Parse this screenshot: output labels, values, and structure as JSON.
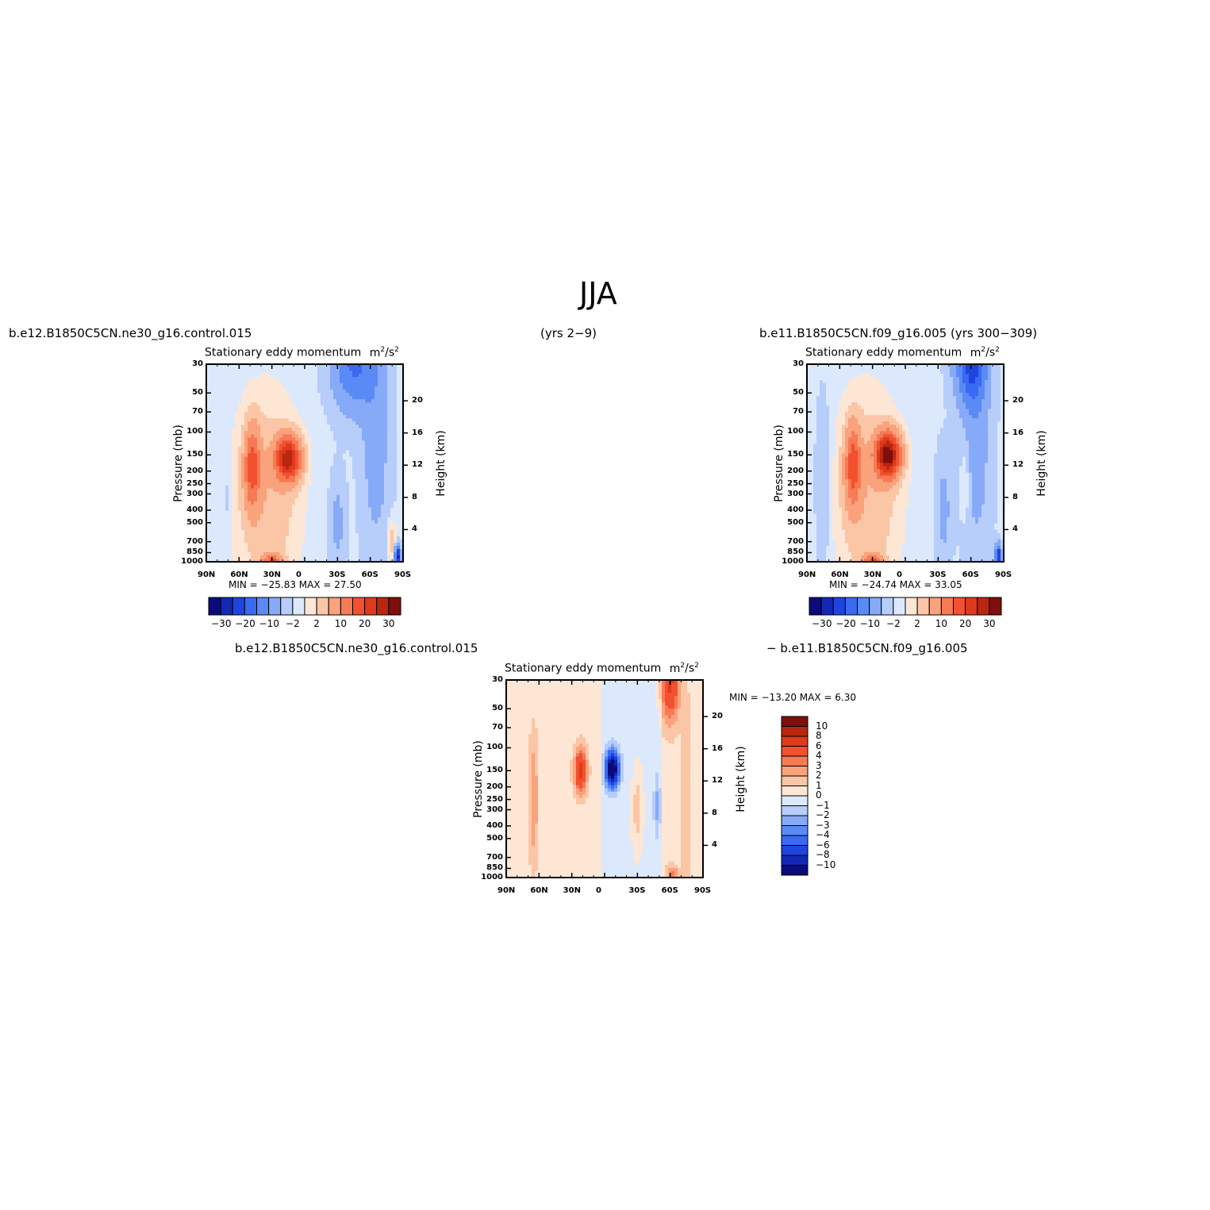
{
  "figure": {
    "title": "JJA",
    "case_left": "b.e12.B1850C5CN.ne30_g16.control.015",
    "years_left": "(yrs 2−9)",
    "case_right": "b.e11.B1850C5CN.f09_g16.005 (yrs 300−309)",
    "diff_case_a": "b.e12.B1850C5CN.ne30_g16.control.015",
    "diff_case_b": "−  b.e11.B1850C5CN.f09_g16.005"
  },
  "chart_data": [
    {
      "type": "heatmap",
      "panel": "left",
      "title": "Stationary eddy momentum",
      "units_base": "m",
      "units_exp1": "2",
      "units_mid": "/s",
      "units_exp2": "2",
      "xlabel": "",
      "ylabel": "Pressure (mb)",
      "y2label": "Height (km)",
      "x_ticks": [
        "90N",
        "60N",
        "30N",
        "0",
        "30S",
        "60S",
        "90S"
      ],
      "y_ticks": [
        "30",
        "50",
        "70",
        "100",
        "150",
        "200",
        "250",
        "300",
        "400",
        "500",
        "700",
        "850",
        "1000"
      ],
      "y2_ticks": [
        "20",
        "16",
        "12",
        "8",
        "4"
      ],
      "stats": "MIN =  −25.83   MAX =    27.50",
      "colorbar_labels": [
        "−30",
        "−20",
        "−10",
        "−2",
        "2",
        "10",
        "20",
        "30"
      ],
      "colors": [
        "#0b0b7a",
        "#1328b5",
        "#1e45e0",
        "#3a6af2",
        "#5a8af5",
        "#86aaf7",
        "#b7cdfa",
        "#dce9fd",
        "#fde6d4",
        "#fbc6a6",
        "#f9a27c",
        "#f67a55",
        "#f2502f",
        "#df3a1b",
        "#b92710",
        "#7e0f0a"
      ],
      "blobs": [
        {
          "lat": 15,
          "p": 160,
          "amp": 27.5,
          "slat": 8,
          "slogp": 0.12
        },
        {
          "lat": 48,
          "p": 185,
          "amp": 16,
          "slat": 5,
          "slogp": 0.22
        },
        {
          "lat": 35,
          "p": 300,
          "amp": 6,
          "slat": 22,
          "slogp": 0.55
        },
        {
          "lat": -45,
          "p": 30,
          "amp": -14,
          "slat": 14,
          "slogp": 0.25
        },
        {
          "lat": -65,
          "p": 120,
          "amp": -6,
          "slat": 9,
          "slogp": 0.6
        },
        {
          "lat": -30,
          "p": 500,
          "amp": -5,
          "slat": 5,
          "slogp": 0.25
        },
        {
          "lat": 70,
          "p": 320,
          "amp": -3,
          "slat": 2,
          "slogp": 0.15
        },
        {
          "lat": 30,
          "p": 980,
          "amp": 14,
          "slat": 6,
          "slogp": 0.04
        },
        {
          "lat": -85,
          "p": 900,
          "amp": -25.8,
          "slat": 2,
          "slogp": 0.06
        },
        {
          "lat": -80,
          "p": 700,
          "amp": 6,
          "slat": 3,
          "slogp": 0.12
        }
      ],
      "background": -1.5
    },
    {
      "type": "heatmap",
      "panel": "right",
      "title": "Stationary eddy momentum",
      "units_base": "m",
      "units_exp1": "2",
      "units_mid": "/s",
      "units_exp2": "2",
      "xlabel": "",
      "ylabel": "Pressure (mb)",
      "y2label": "Height (km)",
      "x_ticks": [
        "90N",
        "60N",
        "30N",
        "0",
        "30S",
        "60S",
        "90S"
      ],
      "y_ticks": [
        "30",
        "50",
        "70",
        "100",
        "150",
        "200",
        "250",
        "300",
        "400",
        "500",
        "700",
        "850",
        "1000"
      ],
      "y2_ticks": [
        "20",
        "16",
        "12",
        "8",
        "4"
      ],
      "stats": "MIN =  −24.74   MAX =    33.05",
      "colorbar_labels": [
        "−30",
        "−20",
        "−10",
        "−2",
        "2",
        "10",
        "20",
        "30"
      ],
      "colors": [
        "#0b0b7a",
        "#1328b5",
        "#1e45e0",
        "#3a6af2",
        "#5a8af5",
        "#86aaf7",
        "#b7cdfa",
        "#dce9fd",
        "#fde6d4",
        "#fbc6a6",
        "#f9a27c",
        "#f67a55",
        "#f2502f",
        "#df3a1b",
        "#b92710",
        "#7e0f0a"
      ],
      "blobs": [
        {
          "lat": 16,
          "p": 150,
          "amp": 33,
          "slat": 8,
          "slogp": 0.12
        },
        {
          "lat": 48,
          "p": 180,
          "amp": 16,
          "slat": 5,
          "slogp": 0.22
        },
        {
          "lat": 35,
          "p": 300,
          "amp": 6,
          "slat": 22,
          "slogp": 0.55
        },
        {
          "lat": -60,
          "p": 30,
          "amp": -18,
          "slat": 10,
          "slogp": 0.22
        },
        {
          "lat": -65,
          "p": 120,
          "amp": -6,
          "slat": 9,
          "slogp": 0.6
        },
        {
          "lat": -35,
          "p": 400,
          "amp": -5,
          "slat": 5,
          "slogp": 0.3
        },
        {
          "lat": 75,
          "p": 250,
          "amp": -4,
          "slat": 5,
          "slogp": 0.45
        },
        {
          "lat": 30,
          "p": 980,
          "amp": 14,
          "slat": 6,
          "slogp": 0.04
        },
        {
          "lat": -85,
          "p": 900,
          "amp": -24.7,
          "slat": 2,
          "slogp": 0.06
        },
        {
          "lat": -55,
          "p": 250,
          "amp": 4,
          "slat": 3,
          "slogp": 0.2
        }
      ],
      "background": -1.5
    },
    {
      "type": "heatmap",
      "panel": "difference",
      "title": "Stationary eddy momentum",
      "units_base": "m",
      "units_exp1": "2",
      "units_mid": "/s",
      "units_exp2": "2",
      "xlabel": "",
      "ylabel": "Pressure (mb)",
      "y2label": "Height (km)",
      "x_ticks": [
        "90N",
        "60N",
        "30N",
        "0",
        "30S",
        "60S",
        "90S"
      ],
      "y_ticks": [
        "30",
        "50",
        "70",
        "100",
        "150",
        "200",
        "250",
        "300",
        "400",
        "500",
        "700",
        "850",
        "1000"
      ],
      "y2_ticks": [
        "20",
        "16",
        "12",
        "8",
        "4"
      ],
      "stats": "MIN = −13.20   MAX =     6.30",
      "colorbar_labels": [
        "10",
        "8",
        "6",
        "4",
        "3",
        "2",
        "1",
        "0",
        "−1",
        "−2",
        "−3",
        "−4",
        "−6",
        "−8",
        "−10"
      ],
      "colors": [
        "#7e0f0a",
        "#b92710",
        "#df3a1b",
        "#f2502f",
        "#f67a55",
        "#f9a27c",
        "#fbc6a6",
        "#fde6d4",
        "#dce9fd",
        "#b7cdfa",
        "#86aaf7",
        "#5a8af5",
        "#3a6af2",
        "#1e45e0",
        "#1328b5",
        "#0b0b7a"
      ],
      "blobs": [
        {
          "lat": 22,
          "p": 150,
          "amp": 6.3,
          "slat": 4,
          "slogp": 0.12
        },
        {
          "lat": -7,
          "p": 145,
          "amp": -13.2,
          "slat": 4,
          "slogp": 0.09
        },
        {
          "lat": -60,
          "p": 30,
          "amp": 6,
          "slat": 6,
          "slogp": 0.22
        },
        {
          "lat": 65,
          "p": 250,
          "amp": 2.5,
          "slat": 3,
          "slogp": 0.35
        },
        {
          "lat": -30,
          "p": 300,
          "amp": 2,
          "slat": 4,
          "slogp": 0.25
        },
        {
          "lat": -48,
          "p": 280,
          "amp": -2,
          "slat": 2,
          "slogp": 0.15
        },
        {
          "lat": -75,
          "p": 300,
          "amp": 1.5,
          "slat": 3,
          "slogp": 0.6
        },
        {
          "lat": -62,
          "p": 950,
          "amp": 3,
          "slat": 4,
          "slogp": 0.05
        }
      ],
      "background": 0.5,
      "neg_band": {
        "lat_from": 2,
        "lat_to": -52,
        "amp": -1
      }
    }
  ]
}
